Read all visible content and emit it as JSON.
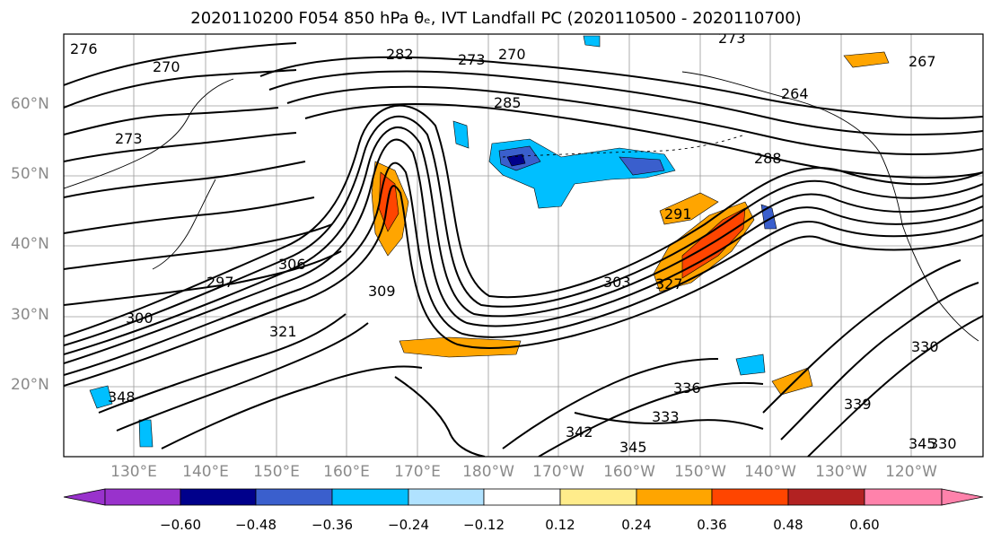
{
  "title": "2020110200 F054 850 hPa θₑ, IVT Landfall PC (2020110500 - 2020110700)",
  "lat_labels": [
    "60°N",
    "50°N",
    "40°N",
    "30°N",
    "20°N"
  ],
  "lon_labels": [
    "130°E",
    "140°E",
    "150°E",
    "160°E",
    "170°E",
    "180°W",
    "170°W",
    "160°W",
    "150°W",
    "140°W",
    "130°W",
    "120°W"
  ],
  "contour_labels": [
    "276",
    "273",
    "270",
    "282",
    "273",
    "270",
    "273",
    "267",
    "264",
    "285",
    "288",
    "291",
    "300",
    "303",
    "297",
    "306",
    "309",
    "321",
    "327",
    "330",
    "339",
    "342",
    "345",
    "336",
    "333",
    "348",
    "345",
    "330"
  ],
  "colorbar": {
    "colors": [
      "#9932cc",
      "#00008b",
      "#3a5fcd",
      "#00bfff",
      "#b0e2ff",
      "#ffffff",
      "#ffec8b",
      "#ffa500",
      "#ff4500",
      "#b22222",
      "#ff82ab"
    ],
    "tick_labels": [
      "−0.60",
      "−0.48",
      "−0.36",
      "−0.24",
      "−0.12",
      "0.12",
      "0.24",
      "0.36",
      "0.48",
      "0.60"
    ]
  }
}
